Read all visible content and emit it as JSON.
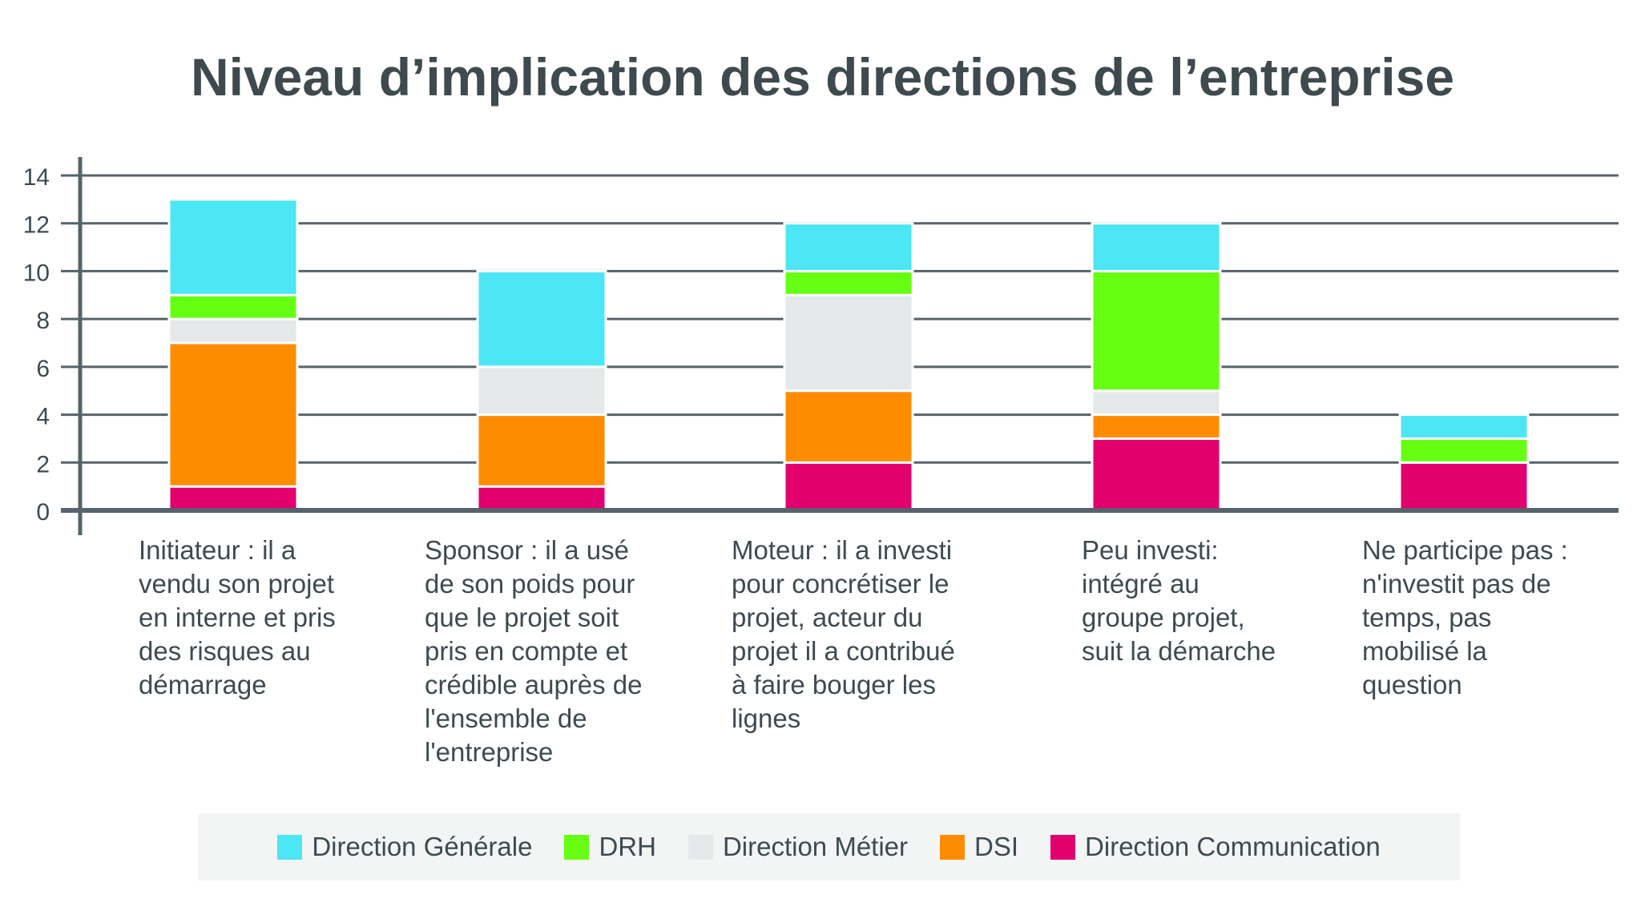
{
  "chart_data": {
    "type": "bar",
    "stacked": true,
    "title": "Niveau d’implication des directions de l’entreprise",
    "categories": [
      "Initiateur : il a vendu son projet en interne et pris des risques au démarrage",
      "Sponsor : il a usé de son poids pour que le projet soit pris en compte et crédible auprès de l'ensemble de l'entreprise",
      "Moteur : il a investi pour concrétiser le projet, acteur du projet il a contribué à faire bouger les lignes",
      "Peu investi: intégré au groupe projet, suit la démarche",
      "Ne participe pas : n'investit pas de temps, pas mobilisé la question"
    ],
    "category_lines": [
      [
        "Initiateur : il a",
        "vendu son projet",
        "en interne et pris",
        "des risques au",
        "démarrage"
      ],
      [
        "Sponsor : il a usé",
        "de son poids pour",
        "que le projet soit",
        "pris en compte et",
        "crédible auprès de",
        "l'ensemble de",
        "l'entreprise"
      ],
      [
        "Moteur : il a investi",
        "pour concrétiser le",
        "projet, acteur du",
        "projet il a contribué",
        "à faire bouger les",
        "lignes"
      ],
      [
        "Peu investi:",
        "intégré au",
        "groupe projet,",
        "suit la démarche"
      ],
      [
        "Ne participe pas :",
        "n'investit pas de",
        "temps, pas",
        "mobilisé la",
        "question"
      ]
    ],
    "series": [
      {
        "name": "Direction Communication",
        "color": "#e1006e",
        "values": [
          1,
          1,
          2,
          3,
          2
        ]
      },
      {
        "name": "DSI",
        "color": "#ff8c00",
        "values": [
          6,
          3,
          3,
          1,
          0
        ]
      },
      {
        "name": "Direction Métier",
        "color": "#e5e8e8",
        "values": [
          1,
          2,
          4,
          1,
          0
        ]
      },
      {
        "name": "DRH",
        "color": "#66ff14",
        "values": [
          1,
          0,
          1,
          5,
          1
        ]
      },
      {
        "name": "Direction Générale",
        "color": "#4ce6f5",
        "values": [
          4,
          4,
          2,
          2,
          1
        ]
      }
    ],
    "legend_order": [
      "Direction Générale",
      "DRH",
      "Direction Métier",
      "DSI",
      "Direction Communication"
    ],
    "yticks": [
      "0",
      "2",
      "4",
      "6",
      "8",
      "10",
      "12",
      "14"
    ],
    "ylim": [
      0,
      14
    ],
    "grid": true,
    "legend_position": "bottom",
    "axis_color": "#56636a"
  }
}
